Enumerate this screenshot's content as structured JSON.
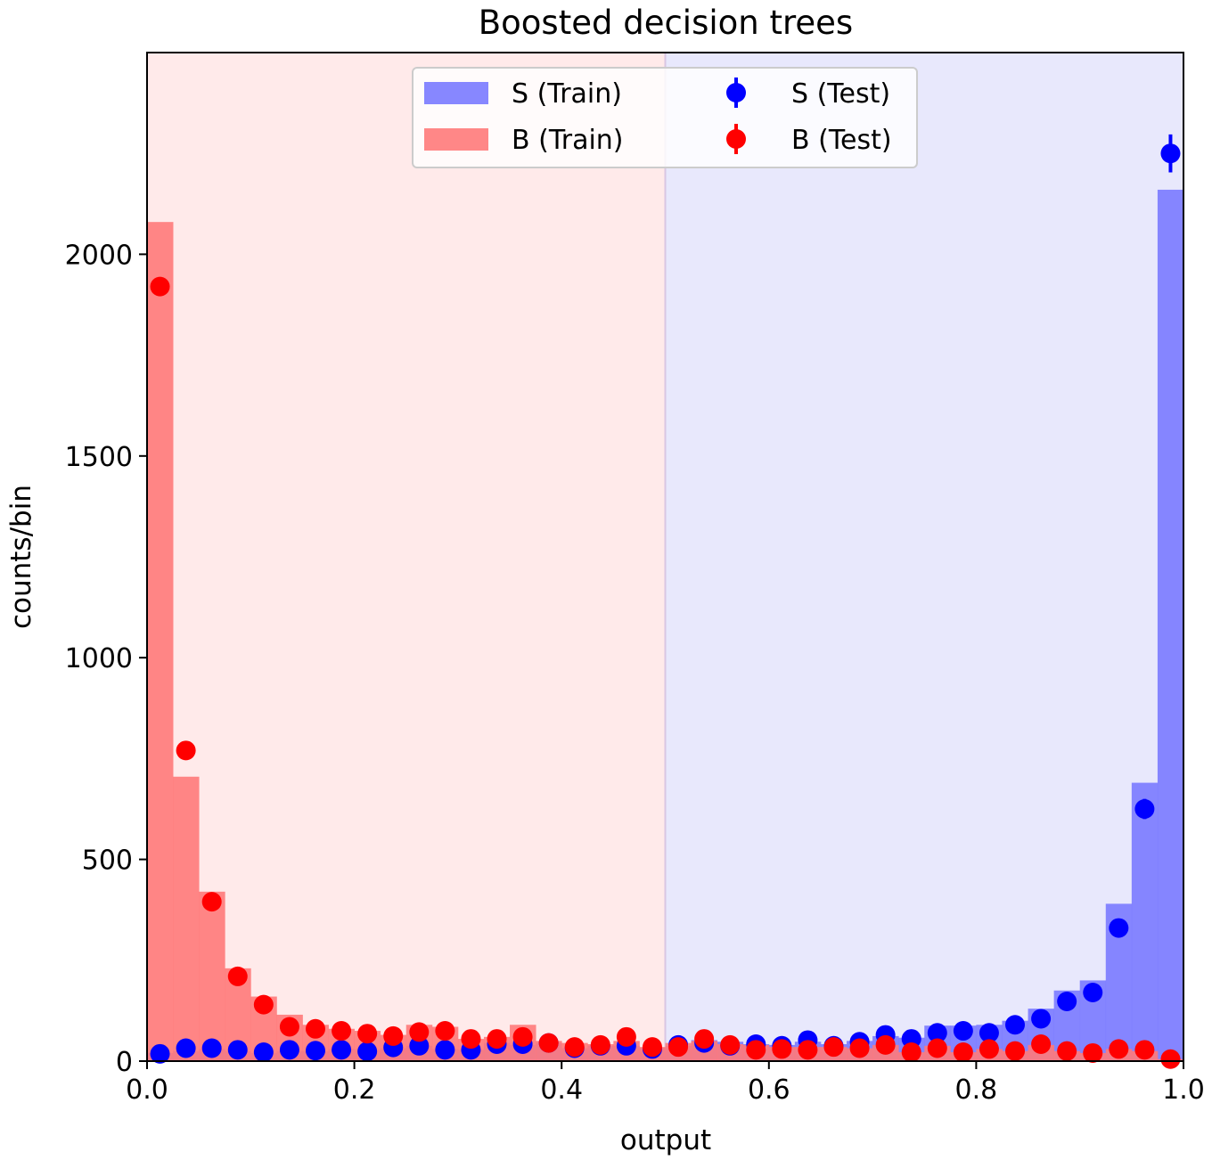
{
  "chart_data": {
    "type": "bar",
    "title": "Boosted decision trees",
    "xlabel": "output",
    "ylabel": "counts/bin",
    "xlim": [
      0.0,
      1.0
    ],
    "ylim": [
      0,
      2500
    ],
    "xticks": [
      "0.0",
      "0.2",
      "0.4",
      "0.6",
      "0.8",
      "1.0"
    ],
    "yticks": [
      "0",
      "500",
      "1000",
      "1500",
      "2000"
    ],
    "grid": false,
    "legend_placement": "top-center",
    "decision_threshold": 0.5,
    "bin_width": 0.025,
    "bin_centers": [
      0.0125,
      0.0375,
      0.0625,
      0.0875,
      0.1125,
      0.1375,
      0.1625,
      0.1875,
      0.2125,
      0.2375,
      0.2625,
      0.2875,
      0.3125,
      0.3375,
      0.3625,
      0.3875,
      0.4125,
      0.4375,
      0.4625,
      0.4875,
      0.5125,
      0.5375,
      0.5625,
      0.5875,
      0.6125,
      0.6375,
      0.6625,
      0.6875,
      0.7125,
      0.7375,
      0.7625,
      0.7875,
      0.8125,
      0.8375,
      0.8625,
      0.8875,
      0.9125,
      0.9375,
      0.9625,
      0.9875
    ],
    "region_colors": {
      "background": "#ffeaea",
      "signal": "#e8e8fc"
    },
    "series": [
      {
        "name": "S (Train)",
        "kind": "histogram",
        "color": "#7a7aff",
        "values": [
          20,
          25,
          30,
          25,
          20,
          25,
          25,
          30,
          28,
          32,
          38,
          30,
          28,
          45,
          40,
          45,
          32,
          38,
          38,
          33,
          38,
          52,
          48,
          42,
          40,
          48,
          42,
          50,
          62,
          58,
          88,
          88,
          90,
          100,
          130,
          175,
          200,
          390,
          690,
          2160
        ]
      },
      {
        "name": "B (Train)",
        "kind": "histogram",
        "color": "#ff7a7a",
        "values": [
          2080,
          705,
          420,
          230,
          160,
          115,
          90,
          80,
          75,
          65,
          90,
          85,
          55,
          60,
          90,
          50,
          45,
          42,
          50,
          35,
          45,
          50,
          42,
          40,
          35,
          35,
          35,
          32,
          40,
          22,
          38,
          22,
          30,
          25,
          40,
          25,
          20,
          30,
          25,
          5
        ]
      },
      {
        "name": "S (Test)",
        "kind": "errorbar",
        "color": "#0000ff",
        "values": [
          18,
          32,
          32,
          28,
          22,
          28,
          26,
          28,
          24,
          34,
          38,
          28,
          28,
          42,
          42,
          45,
          32,
          38,
          38,
          30,
          40,
          45,
          38,
          42,
          38,
          52,
          38,
          48,
          65,
          55,
          70,
          75,
          70,
          90,
          105,
          148,
          170,
          330,
          625,
          2250
        ],
        "errors": [
          4,
          6,
          6,
          5,
          5,
          5,
          5,
          5,
          5,
          6,
          6,
          5,
          5,
          7,
          7,
          7,
          6,
          6,
          6,
          6,
          6,
          7,
          6,
          7,
          6,
          7,
          6,
          7,
          8,
          7,
          8,
          9,
          8,
          10,
          10,
          12,
          13,
          18,
          25,
          47
        ]
      },
      {
        "name": "B (Test)",
        "kind": "errorbar",
        "color": "#ff0000",
        "values": [
          1920,
          770,
          395,
          210,
          140,
          85,
          80,
          75,
          68,
          62,
          72,
          75,
          55,
          55,
          60,
          45,
          35,
          40,
          60,
          35,
          35,
          55,
          40,
          28,
          30,
          28,
          35,
          32,
          40,
          22,
          32,
          22,
          30,
          25,
          42,
          25,
          20,
          30,
          28,
          5
        ]
      }
    ]
  }
}
